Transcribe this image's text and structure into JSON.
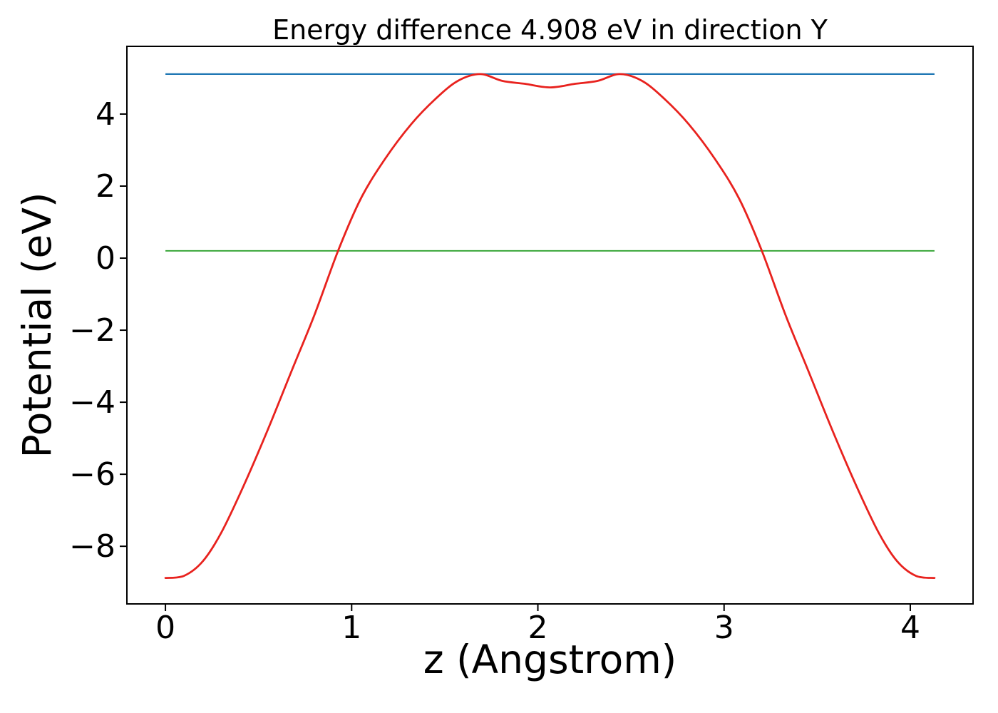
{
  "figure": {
    "title": "Energy difference 4.908 eV in direction Y",
    "xlabel": "z (Angstrom)",
    "ylabel": "Potential (eV)",
    "background_color": "#ffffff",
    "spine_color": "#000000"
  },
  "chart_data": {
    "type": "line",
    "title": "Energy difference 4.908 eV in direction Y",
    "xlabel": "z (Angstrom)",
    "ylabel": "Potential (eV)",
    "energy_difference_eV": 4.908,
    "direction": "Y",
    "xlim": [
      -0.207,
      4.337
    ],
    "ylim": [
      -9.6,
      5.88
    ],
    "xticks": {
      "values": [
        0,
        1,
        2,
        3,
        4
      ],
      "labels": [
        "0",
        "1",
        "2",
        "3",
        "4"
      ]
    },
    "yticks": {
      "values": [
        4,
        2,
        0,
        -2,
        -4,
        -6,
        -8
      ],
      "labels": [
        "4",
        "2",
        "0",
        "−2",
        "−4",
        "−6",
        "−8"
      ]
    },
    "grid": false,
    "legend": "none",
    "series": [
      {
        "name": "upper-level-line",
        "kind": "hline",
        "color": "#1f77b4",
        "line_width": 2.3,
        "y": 5.11,
        "x_range": [
          0,
          4.13
        ]
      },
      {
        "name": "lower-level-line",
        "kind": "hline",
        "color": "#2ca02c",
        "line_width": 1.8,
        "y": 0.202,
        "x_range": [
          0,
          4.13
        ]
      },
      {
        "name": "potential-curve",
        "kind": "curve",
        "color": "#e8221e",
        "line_width": 2.8,
        "points": [
          [
            0.0,
            -8.88
          ],
          [
            0.1,
            -8.82
          ],
          [
            0.2,
            -8.42
          ],
          [
            0.3,
            -7.62
          ],
          [
            0.42,
            -6.32
          ],
          [
            0.55,
            -4.76
          ],
          [
            0.68,
            -3.1
          ],
          [
            0.8,
            -1.58
          ],
          [
            0.93,
            0.24
          ],
          [
            1.05,
            1.66
          ],
          [
            1.18,
            2.76
          ],
          [
            1.32,
            3.72
          ],
          [
            1.45,
            4.42
          ],
          [
            1.57,
            4.92
          ],
          [
            1.69,
            5.11
          ],
          [
            1.81,
            4.92
          ],
          [
            1.93,
            4.84
          ],
          [
            2.065,
            4.74
          ],
          [
            2.2,
            4.84
          ],
          [
            2.32,
            4.92
          ],
          [
            2.44,
            5.11
          ],
          [
            2.56,
            4.92
          ],
          [
            2.68,
            4.42
          ],
          [
            2.81,
            3.72
          ],
          [
            2.95,
            2.76
          ],
          [
            3.08,
            1.66
          ],
          [
            3.2,
            0.24
          ],
          [
            3.33,
            -1.58
          ],
          [
            3.45,
            -3.1
          ],
          [
            3.58,
            -4.76
          ],
          [
            3.71,
            -6.32
          ],
          [
            3.83,
            -7.62
          ],
          [
            3.93,
            -8.42
          ],
          [
            4.03,
            -8.82
          ],
          [
            4.13,
            -8.88
          ]
        ]
      }
    ]
  }
}
